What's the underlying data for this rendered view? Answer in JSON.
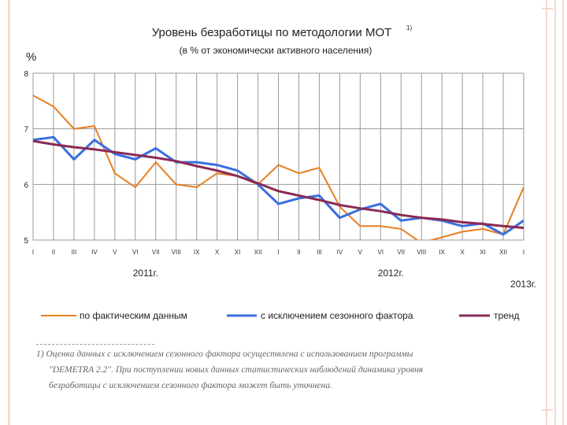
{
  "chart_data": {
    "type": "line",
    "title": "Уровень безработицы по методологии МОТ",
    "title_note": "1)",
    "subtitle": "(в % от экономически активного населения)",
    "ylabel": "%",
    "ylim": [
      5,
      8
    ],
    "yticks": [
      "5",
      "6",
      "7",
      "8"
    ],
    "categories": [
      "I",
      "II",
      "III",
      "IV",
      "V",
      "VI",
      "VII",
      "VIII",
      "IX",
      "X",
      "XI",
      "XII",
      "I",
      "II",
      "III",
      "IV",
      "V",
      "VI",
      "VII",
      "VIII",
      "IX",
      "X",
      "XI",
      "XII",
      "I"
    ],
    "year_labels": [
      {
        "label": "2011г.",
        "start": 0,
        "end": 11
      },
      {
        "label": "2012г.",
        "start": 12,
        "end": 23
      },
      {
        "label": "2013г.",
        "start": 24,
        "end": 24
      }
    ],
    "grid": true,
    "legend_position": "bottom",
    "series": [
      {
        "name": "по фактическим данным",
        "color": "#e87f22",
        "values": [
          7.6,
          7.4,
          7.0,
          7.05,
          6.2,
          5.95,
          6.4,
          6.0,
          5.95,
          6.2,
          6.15,
          6.0,
          6.35,
          6.2,
          6.3,
          5.6,
          5.25,
          5.25,
          5.2,
          4.95,
          5.05,
          5.15,
          5.2,
          5.1,
          5.95
        ]
      },
      {
        "name": "с исключением сезонного фактора",
        "color": "#3a6fe0",
        "values": [
          6.8,
          6.85,
          6.45,
          6.8,
          6.55,
          6.45,
          6.65,
          6.4,
          6.4,
          6.35,
          6.25,
          6.0,
          5.65,
          5.75,
          5.8,
          5.4,
          5.55,
          5.65,
          5.35,
          5.4,
          5.35,
          5.25,
          5.3,
          5.1,
          5.35
        ]
      },
      {
        "name": "тренд",
        "color": "#8a2a55",
        "values": [
          6.78,
          6.72,
          6.67,
          6.63,
          6.58,
          6.53,
          6.48,
          6.42,
          6.33,
          6.25,
          6.15,
          6.02,
          5.88,
          5.8,
          5.72,
          5.63,
          5.57,
          5.52,
          5.45,
          5.4,
          5.37,
          5.32,
          5.29,
          5.25,
          5.22
        ]
      }
    ]
  },
  "footnote": {
    "line1": "1) Оценка данных с исключением сезонного фактора осуществлена с использованием программы",
    "line2": "\"DEMETRA 2.2\". При поступлении новых данных статистических наблюдений динамика уровня",
    "line3": "безработицы с исключением сезонного фактора может быть уточнена."
  }
}
